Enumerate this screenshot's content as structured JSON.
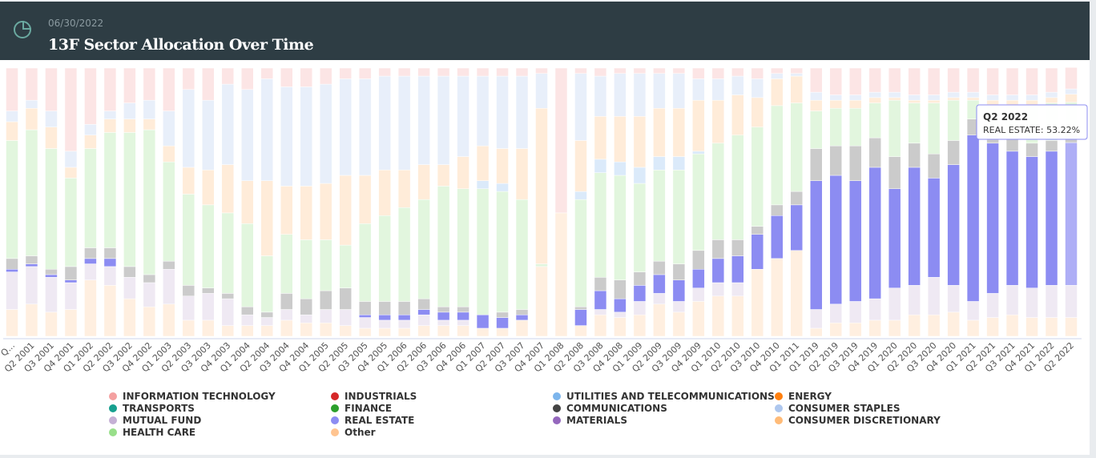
{
  "chart_data": {
    "type": "stacked_bar",
    "title": "13F Sector Allocation Over Time",
    "subtitle": "06/30/2022",
    "categories": [
      "Q...",
      "Q2 2001",
      "Q3 2001",
      "Q4 2001",
      "Q1 2002",
      "Q2 2002",
      "Q3 2002",
      "Q4 2002",
      "Q1 2003",
      "Q2 2003",
      "Q3 2003",
      "Q4 2003",
      "Q1 2004",
      "Q2 2004",
      "Q3 2004",
      "Q4 2004",
      "Q1 2005",
      "Q2 2005",
      "Q3 2005",
      "Q4 2005",
      "Q1 2006",
      "Q2 2006",
      "Q3 2006",
      "Q4 2006",
      "Q1 2007",
      "Q2 2007",
      "Q3 2007",
      "Q4 2007",
      "Q1 2008",
      "Q2 2008",
      "Q3 2008",
      "Q4 2008",
      "Q1 2009",
      "Q2 2009",
      "Q3 2009",
      "Q4 2009",
      "Q1 2010",
      "Q2 2010",
      "Q3 2010",
      "Q4 2010",
      "Q1 2011",
      "Q1 2019",
      "Q2 2019",
      "Q3 2019",
      "Q4 2019",
      "Q1 2020",
      "Q2 2020",
      "Q3 2020",
      "Q4 2020",
      "Q1 2021",
      "Q2 2021",
      "Q3 2021",
      "Q4 2021",
      "Q1 2022",
      "Q2 2022"
    ],
    "ylim": [
      0,
      100
    ],
    "highlight_series": 9,
    "series": [
      {
        "name": "INFORMATION TECHNOLOGY",
        "color": "#f4a0a0",
        "values": [
          16,
          12,
          16,
          31,
          21,
          16,
          13,
          12,
          16,
          8,
          12,
          6,
          8,
          4,
          7,
          7,
          6,
          4,
          4,
          3,
          3,
          3,
          3,
          3,
          3,
          3,
          3,
          2,
          54,
          2,
          3,
          2,
          2,
          2,
          2,
          4,
          4,
          3,
          4,
          2,
          2,
          9,
          10,
          10,
          9,
          9,
          10,
          10,
          9,
          9,
          10,
          10,
          10,
          9,
          8
        ]
      },
      {
        "name": "INDUSTRIALS",
        "color": "#d62728",
        "values": [
          0,
          0,
          0,
          0,
          0,
          0,
          0,
          0,
          0,
          0,
          0,
          0,
          0,
          0,
          0,
          0,
          0,
          0,
          0,
          0,
          0,
          0,
          0,
          0,
          0,
          0,
          0,
          0,
          0,
          0,
          0,
          0,
          0,
          0,
          0,
          0,
          0,
          0,
          0,
          0,
          0,
          0,
          0,
          0,
          0,
          0,
          0,
          0,
          0,
          0,
          0,
          0,
          0,
          0,
          0
        ]
      },
      {
        "name": "UTILITIES AND TELECOMMUNICATIONS",
        "color": "#7cb5ec",
        "values": [
          0,
          0,
          0,
          0,
          0,
          0,
          0,
          0,
          0,
          0,
          0,
          0,
          0,
          0,
          0,
          0,
          0,
          0,
          0,
          0,
          0,
          0,
          0,
          0,
          3,
          3,
          0,
          0,
          0,
          3,
          5,
          5,
          6,
          5,
          5,
          1,
          0,
          0,
          0,
          0,
          0,
          0,
          0,
          0,
          0,
          0,
          0,
          0,
          0,
          0,
          0,
          0,
          0,
          0,
          0
        ]
      },
      {
        "name": "ENERGY",
        "color": "#ff7f0e",
        "values": [
          0,
          0,
          0,
          0,
          0,
          0,
          0,
          0,
          0,
          0,
          0,
          0,
          0,
          0,
          0,
          0,
          0,
          0,
          0,
          0,
          0,
          0,
          0,
          0,
          0,
          0,
          0,
          0,
          0,
          0,
          0,
          0,
          0,
          0,
          0,
          0,
          0,
          0,
          0,
          0,
          0,
          0,
          0,
          0,
          0,
          0,
          0,
          0,
          0,
          0,
          0,
          0,
          0,
          0,
          0
        ]
      },
      {
        "name": "TRANSPORTS",
        "color": "#17a08f",
        "values": [
          0,
          0,
          0,
          0,
          0,
          0,
          0,
          0,
          0,
          0,
          0,
          0,
          0,
          0,
          0,
          0,
          0,
          0,
          0,
          0,
          0,
          0,
          0,
          0,
          0,
          0,
          0,
          0,
          0,
          0,
          0,
          0,
          0,
          0,
          0,
          0,
          0,
          0,
          0,
          0,
          0,
          0,
          0,
          0,
          0,
          0,
          0,
          0,
          0,
          0,
          0,
          0,
          0,
          0,
          0
        ]
      },
      {
        "name": "FINANCE",
        "color": "#2ca02c",
        "values": [
          0,
          0,
          0,
          0,
          0,
          0,
          0,
          0,
          0,
          0,
          0,
          0,
          0,
          0,
          0,
          0,
          0,
          0,
          0,
          0,
          0,
          0,
          0,
          0,
          0,
          0,
          0,
          0,
          0,
          0,
          0,
          0,
          0,
          0,
          0,
          0,
          0,
          0,
          0,
          0,
          0,
          0,
          0,
          0,
          0,
          0,
          0,
          0,
          0,
          0,
          0,
          0,
          0,
          0,
          0
        ]
      },
      {
        "name": "COMMUNICATIONS",
        "color": "#444444",
        "values": [
          4,
          3,
          2,
          5,
          4,
          4,
          4,
          3,
          3,
          4,
          2,
          2,
          3,
          2,
          6,
          6,
          7,
          8,
          5,
          5,
          5,
          4,
          2,
          2,
          0,
          2,
          2,
          0,
          0,
          1,
          5,
          7,
          5,
          5,
          6,
          7,
          7,
          6,
          3,
          4,
          5,
          12,
          11,
          13,
          11,
          12,
          9,
          9,
          9,
          6,
          5,
          5,
          5,
          4,
          4
        ]
      },
      {
        "name": "CONSUMER STAPLES",
        "color": "#aec7ee",
        "values": [
          4,
          3,
          6,
          6,
          4,
          3,
          6,
          7,
          13,
          29,
          26,
          30,
          34,
          38,
          37,
          37,
          37,
          36,
          36,
          35,
          35,
          33,
          33,
          30,
          26,
          27,
          27,
          13,
          0,
          25,
          15,
          16,
          16,
          13,
          13,
          8,
          8,
          7,
          7,
          2,
          1,
          3,
          2,
          2,
          2,
          2,
          2,
          2,
          2,
          2,
          2,
          2,
          2,
          2,
          2
        ]
      },
      {
        "name": "MUTUAL FUND",
        "color": "#c5b0d5",
        "values": [
          14,
          14,
          13,
          10,
          6,
          7,
          8,
          9,
          13,
          9,
          10,
          10,
          4,
          3,
          4,
          3,
          5,
          6,
          4,
          3,
          3,
          4,
          2,
          2,
          0,
          0,
          0,
          0,
          0,
          0,
          2,
          2,
          5,
          4,
          4,
          5,
          5,
          5,
          0,
          0,
          0,
          7,
          7,
          8,
          8,
          12,
          11,
          14,
          10,
          7,
          9,
          11,
          11,
          12,
          12
        ]
      },
      {
        "name": "REAL ESTATE",
        "color": "#8c8cf2",
        "values": [
          1,
          1,
          1,
          1,
          2,
          3,
          0,
          0,
          0,
          0,
          0,
          0,
          0,
          0,
          0,
          0,
          0,
          0,
          1,
          2,
          2,
          2,
          3,
          3,
          5,
          4,
          2,
          0,
          0,
          6,
          7,
          5,
          6,
          7,
          8,
          7,
          9,
          10,
          13,
          16,
          17,
          48,
          48,
          45,
          49,
          37,
          44,
          37,
          45,
          62,
          56,
          50,
          49,
          50,
          53.22
        ]
      },
      {
        "name": "MATERIALS",
        "color": "#9467bd",
        "values": [
          0,
          0,
          0,
          0,
          0,
          0,
          0,
          0,
          0,
          0,
          0,
          0,
          0,
          0,
          0,
          0,
          0,
          0,
          0,
          0,
          0,
          0,
          0,
          0,
          0,
          0,
          0,
          0,
          0,
          0,
          0,
          0,
          0,
          0,
          0,
          0,
          0,
          0,
          0,
          0,
          0,
          0,
          0,
          0,
          0,
          0,
          0,
          0,
          0,
          0,
          0,
          0,
          0,
          0,
          0
        ]
      },
      {
        "name": "CONSUMER DISCRETIONARY",
        "color": "#ffbb78",
        "values": [
          7,
          8,
          8,
          4,
          5,
          5,
          5,
          4,
          6,
          10,
          13,
          18,
          16,
          28,
          18,
          20,
          21,
          26,
          18,
          17,
          14,
          13,
          8,
          12,
          13,
          13,
          19,
          58,
          0,
          19,
          16,
          17,
          19,
          18,
          18,
          19,
          16,
          15,
          11,
          10,
          10,
          4,
          3,
          3,
          2,
          1,
          1,
          1,
          1,
          1,
          2,
          2,
          2,
          2,
          3
        ]
      },
      {
        "name": "HEALTH CARE",
        "color": "#98df8a",
        "values": [
          44,
          47,
          45,
          33,
          37,
          43,
          50,
          54,
          37,
          34,
          31,
          30,
          31,
          21,
          22,
          22,
          19,
          16,
          29,
          32,
          35,
          37,
          45,
          44,
          47,
          45,
          41,
          1,
          0,
          40,
          39,
          39,
          33,
          34,
          35,
          36,
          36,
          39,
          37,
          37,
          33,
          14,
          14,
          14,
          13,
          21,
          15,
          19,
          15,
          7,
          9,
          12,
          14,
          14,
          11
        ]
      },
      {
        "name": "Other",
        "color": "#ffc490",
        "values": [
          10,
          12,
          9,
          10,
          21,
          19,
          14,
          11,
          12,
          6,
          6,
          4,
          4,
          4,
          6,
          5,
          5,
          4,
          3,
          3,
          3,
          4,
          4,
          4,
          3,
          3,
          6,
          26,
          46,
          4,
          8,
          7,
          8,
          12,
          9,
          13,
          15,
          15,
          25,
          29,
          32,
          3,
          5,
          5,
          6,
          6,
          8,
          8,
          9,
          6,
          7,
          8,
          7,
          7,
          7
        ]
      }
    ],
    "tooltip": {
      "title": "Q2 2022",
      "text": "REAL ESTATE: 53.22%"
    }
  }
}
